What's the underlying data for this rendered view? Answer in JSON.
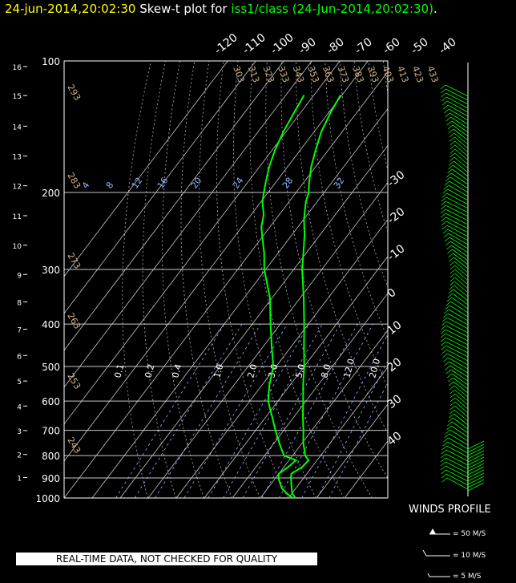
{
  "title": {
    "date": "24-jun-2014,20:02:30",
    "prefix": "Skew-t plot for",
    "site": "iss1/class (24-Jun-2014,20:02:30)",
    "suffix": "."
  },
  "chart_data": {
    "type": "line",
    "pressure_ticks": [
      100,
      200,
      300,
      400,
      500,
      600,
      700,
      800,
      900,
      1000
    ],
    "height_ticks_km": [
      1,
      2,
      3,
      4,
      5,
      6,
      7,
      8,
      9,
      10,
      11,
      12,
      13,
      14,
      15,
      16
    ],
    "isotherm_labels_top": [
      "-120",
      "-110",
      "-100",
      "-90",
      "-80",
      "-70",
      "-60",
      "-50",
      "-40"
    ],
    "isotherm_labels_right": [
      "-30",
      "-20",
      "-10",
      "0",
      "10",
      "20",
      "30",
      "40"
    ],
    "theta_labels": [
      "303",
      "313",
      "323",
      "333",
      "343",
      "353",
      "363",
      "373",
      "383",
      "393",
      "403",
      "413",
      "423",
      "433"
    ],
    "theta_left_labels": [
      "293",
      "283",
      "273",
      "263",
      "253",
      "243"
    ],
    "mixing_ratio_upper": [
      "4",
      "8",
      "12",
      "16",
      "20",
      "24",
      "28",
      "32"
    ],
    "mixing_ratio_lower": [
      "0.1",
      "0.2",
      "0.4",
      "1.0",
      "2.0",
      "3.0",
      "5.0",
      "8.0",
      "12.0",
      "20.0"
    ],
    "series": [
      {
        "color": "#00ff00",
        "points": [
          [
            1000,
            22.5
          ],
          [
            975,
            20.0
          ],
          [
            950,
            18.5
          ],
          [
            925,
            17.0
          ],
          [
            900,
            15.5
          ],
          [
            880,
            14.5
          ],
          [
            850,
            16.5
          ],
          [
            820,
            17.0
          ],
          [
            800,
            14.5
          ],
          [
            780,
            13.0
          ],
          [
            750,
            10.5
          ],
          [
            700,
            7.0
          ],
          [
            650,
            3.0
          ],
          [
            600,
            -1.0
          ],
          [
            550,
            -5.5
          ],
          [
            500,
            -10.0
          ],
          [
            450,
            -15.5
          ],
          [
            400,
            -21.5
          ],
          [
            350,
            -28.5
          ],
          [
            300,
            -37.0
          ],
          [
            275,
            -41.0
          ],
          [
            250,
            -45.5
          ],
          [
            230,
            -50.0
          ],
          [
            210,
            -54.0
          ],
          [
            200,
            -55.5
          ],
          [
            190,
            -58.0
          ],
          [
            175,
            -61.5
          ],
          [
            160,
            -64.5
          ],
          [
            145,
            -67.5
          ],
          [
            130,
            -69.5
          ],
          [
            120,
            -70.5
          ]
        ]
      },
      {
        "color": "#00ff00",
        "points": [
          [
            1000,
            21.5
          ],
          [
            975,
            18.0
          ],
          [
            950,
            15.0
          ],
          [
            925,
            13.0
          ],
          [
            900,
            11.0
          ],
          [
            880,
            10.0
          ],
          [
            850,
            11.5
          ],
          [
            820,
            12.5
          ],
          [
            800,
            7.0
          ],
          [
            780,
            5.0
          ],
          [
            750,
            2.0
          ],
          [
            700,
            -3.0
          ],
          [
            650,
            -8.0
          ],
          [
            600,
            -13.5
          ],
          [
            550,
            -17.5
          ],
          [
            500,
            -21.0
          ],
          [
            450,
            -27.0
          ],
          [
            400,
            -33.5
          ],
          [
            350,
            -40.5
          ],
          [
            300,
            -50.5
          ],
          [
            275,
            -55.0
          ],
          [
            255,
            -59.5
          ],
          [
            240,
            -63.0
          ],
          [
            225,
            -65.5
          ],
          [
            210,
            -69.5
          ],
          [
            200,
            -71.5
          ],
          [
            190,
            -73.5
          ],
          [
            175,
            -76.5
          ],
          [
            160,
            -79.0
          ],
          [
            145,
            -81.0
          ],
          [
            130,
            -82.5
          ],
          [
            120,
            -83.5
          ]
        ]
      }
    ],
    "winds": {
      "title": "WINDS PROFILE",
      "legend": [
        "= 50 M/S",
        "= 10 M/S",
        "= 5 M/S"
      ]
    }
  },
  "disclaimer": "REAL-TIME DATA, NOT CHECKED FOR QUALITY"
}
